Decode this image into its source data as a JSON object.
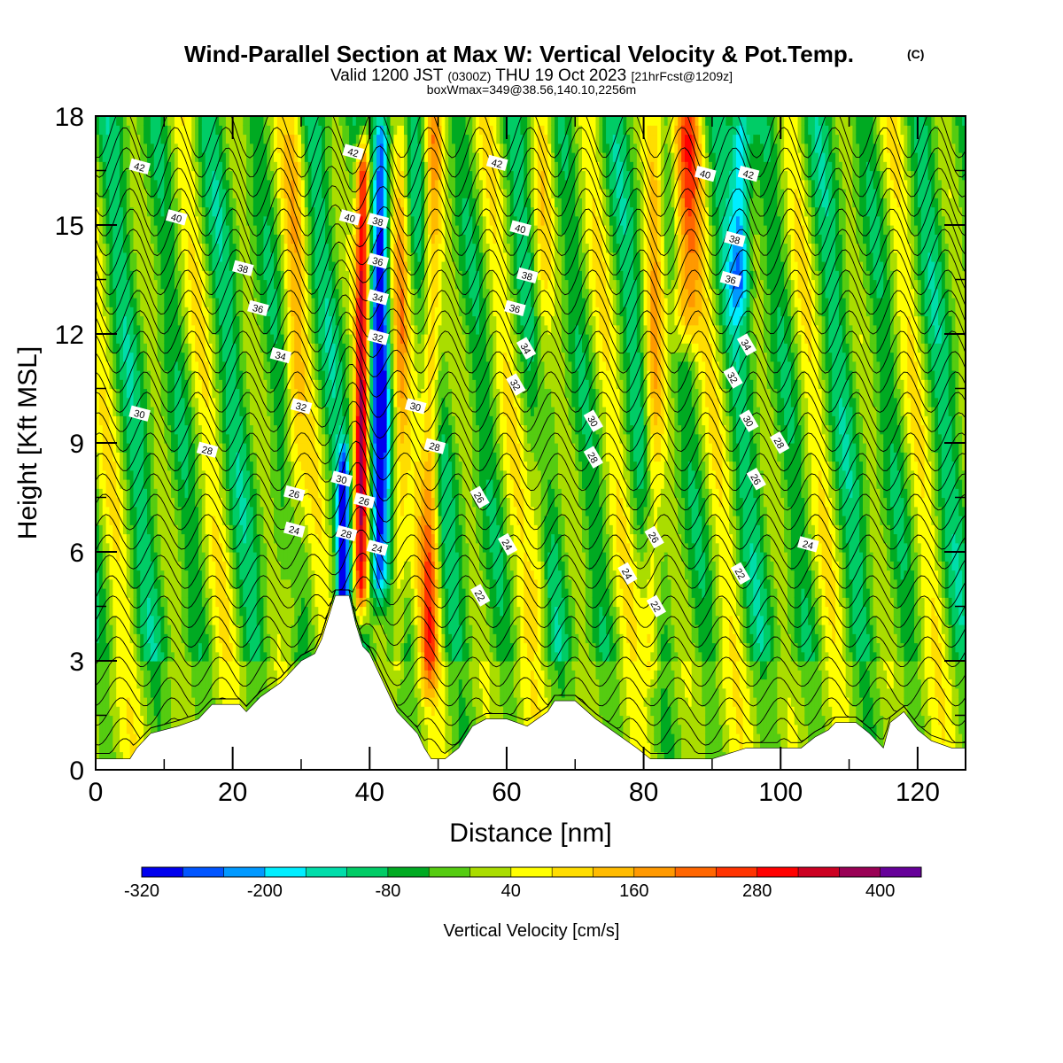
{
  "chart_data": {
    "type": "heatmap",
    "title": "Wind-Parallel Section at Max W: Vertical Velocity & Pot.Temp.",
    "title_mark": "(C)",
    "subtitle_parts": [
      "Valid 1200 JST ",
      "(0300Z)",
      " THU 19 Oct 2023 ",
      "[21hrFcst@1209z]"
    ],
    "subtitle2": "boxWmax=349@38.56,140.10,2256m",
    "xlabel": "Distance [nm]",
    "ylabel": "Height [Kft MSL]",
    "xlim": [
      0,
      127
    ],
    "ylim": [
      0,
      18
    ],
    "xticks": [
      0,
      20,
      40,
      60,
      80,
      100,
      120
    ],
    "yticks": [
      0,
      3,
      6,
      9,
      12,
      15,
      18
    ],
    "colorbar": {
      "label": "Vertical Velocity [cm/s]",
      "min": -320,
      "max": 440,
      "step": 40,
      "tick_labels": [
        -320,
        -200,
        -80,
        40,
        160,
        280,
        400
      ],
      "colors": [
        "#0000ee",
        "#0055ff",
        "#0099ff",
        "#00eeff",
        "#00ddaa",
        "#00cc66",
        "#00aa22",
        "#55cc11",
        "#aadd00",
        "#ffff00",
        "#ffdd00",
        "#ffbb00",
        "#ff9900",
        "#ff6600",
        "#ff3300",
        "#ff0000",
        "#cc0022",
        "#990055",
        "#660099"
      ]
    },
    "terrain_kft": [
      [
        0,
        0.3
      ],
      [
        5,
        0.3
      ],
      [
        6,
        0.6
      ],
      [
        8,
        1.0
      ],
      [
        12,
        1.2
      ],
      [
        15,
        1.4
      ],
      [
        17,
        1.8
      ],
      [
        21,
        1.8
      ],
      [
        22,
        1.6
      ],
      [
        24,
        2.0
      ],
      [
        27,
        2.4
      ],
      [
        30,
        3.0
      ],
      [
        32,
        3.2
      ],
      [
        33,
        3.6
      ],
      [
        34,
        4.2
      ],
      [
        35,
        4.8
      ],
      [
        37,
        4.8
      ],
      [
        38,
        4.0
      ],
      [
        39,
        3.4
      ],
      [
        40,
        3.2
      ],
      [
        42,
        2.4
      ],
      [
        44,
        1.6
      ],
      [
        47,
        1.0
      ],
      [
        48,
        0.6
      ],
      [
        49,
        0.3
      ],
      [
        51,
        0.3
      ],
      [
        53,
        0.6
      ],
      [
        55,
        1.2
      ],
      [
        57,
        1.4
      ],
      [
        60,
        1.4
      ],
      [
        63,
        1.2
      ],
      [
        66,
        1.6
      ],
      [
        67,
        1.9
      ],
      [
        70,
        1.9
      ],
      [
        73,
        1.4
      ],
      [
        76,
        1.0
      ],
      [
        79,
        0.6
      ],
      [
        81,
        0.3
      ],
      [
        90,
        0.3
      ],
      [
        95,
        0.6
      ],
      [
        103,
        0.6
      ],
      [
        105,
        0.9
      ],
      [
        107,
        1.1
      ],
      [
        108,
        1.3
      ],
      [
        111,
        1.3
      ],
      [
        113,
        1.0
      ],
      [
        115,
        0.6
      ],
      [
        116,
        1.3
      ],
      [
        118,
        1.6
      ],
      [
        120,
        1.1
      ],
      [
        122,
        0.8
      ],
      [
        125,
        0.6
      ],
      [
        127,
        0.6
      ]
    ],
    "velocity_features": [
      {
        "x": 38.8,
        "w": 360,
        "sigma": 1.0,
        "ztop": 17.0,
        "zbot": 4.5
      },
      {
        "x": 36.2,
        "w": -280,
        "sigma": 0.8,
        "ztop": 8.5,
        "zbot": 4.5
      },
      {
        "x": 41.5,
        "w": -300,
        "sigma": 1.2,
        "ztop": 18.0,
        "zbot": 5.0
      },
      {
        "x": 86.0,
        "w": 200,
        "sigma": 2.0,
        "ztop": 18.0,
        "zbot": 12.0
      },
      {
        "x": 94.0,
        "w": -200,
        "sigma": 1.5,
        "ztop": 18.0,
        "zbot": 13.0
      },
      {
        "x": 49.0,
        "w": 190,
        "sigma": 1.3,
        "ztop": 18.0,
        "zbot": 2.5
      },
      {
        "x": 81.5,
        "w": 150,
        "sigma": 1.4,
        "ztop": 18.0,
        "zbot": 3.0
      },
      {
        "x": 65.0,
        "w": 90,
        "sigma": 1.5,
        "ztop": 18.0,
        "zbot": 4.0
      },
      {
        "x": 44.5,
        "w": 110,
        "sigma": 1.0,
        "ztop": 18.0,
        "zbot": 3.0
      },
      {
        "x": 29.0,
        "w": 80,
        "sigma": 1.5,
        "ztop": 18.0,
        "zbot": 4.0
      }
    ],
    "theta_labels": [
      {
        "x": 6.4,
        "z": 16.6,
        "t": "42"
      },
      {
        "x": 11.8,
        "z": 15.2,
        "t": "40"
      },
      {
        "x": 21.5,
        "z": 13.8,
        "t": "38"
      },
      {
        "x": 23.7,
        "z": 12.7,
        "t": "36"
      },
      {
        "x": 27.0,
        "z": 11.4,
        "t": "34"
      },
      {
        "x": 30.0,
        "z": 10.0,
        "t": "32"
      },
      {
        "x": 6.4,
        "z": 9.8,
        "t": "30"
      },
      {
        "x": 16.3,
        "z": 8.8,
        "t": "28"
      },
      {
        "x": 29.0,
        "z": 7.6,
        "t": "26"
      },
      {
        "x": 29.0,
        "z": 6.6,
        "t": "24"
      },
      {
        "x": 37.6,
        "z": 17.0,
        "t": "42"
      },
      {
        "x": 37.1,
        "z": 15.2,
        "t": "40"
      },
      {
        "x": 41.2,
        "z": 15.1,
        "t": "38"
      },
      {
        "x": 41.2,
        "z": 14.0,
        "t": "36"
      },
      {
        "x": 41.2,
        "z": 13.0,
        "t": "34"
      },
      {
        "x": 41.2,
        "z": 11.9,
        "t": "32"
      },
      {
        "x": 35.9,
        "z": 8.0,
        "t": "30"
      },
      {
        "x": 36.6,
        "z": 6.5,
        "t": "28"
      },
      {
        "x": 39.2,
        "z": 7.4,
        "t": "26"
      },
      {
        "x": 41.1,
        "z": 6.1,
        "t": "24"
      },
      {
        "x": 58.6,
        "z": 16.7,
        "t": "42"
      },
      {
        "x": 62.0,
        "z": 14.9,
        "t": "40"
      },
      {
        "x": 63.0,
        "z": 13.6,
        "t": "38"
      },
      {
        "x": 61.2,
        "z": 12.7,
        "t": "36"
      },
      {
        "x": 62.8,
        "z": 11.6,
        "t": "34"
      },
      {
        "x": 61.3,
        "z": 10.6,
        "t": "32"
      },
      {
        "x": 46.7,
        "z": 10.0,
        "t": "30"
      },
      {
        "x": 49.5,
        "z": 8.9,
        "t": "28"
      },
      {
        "x": 56.0,
        "z": 7.5,
        "t": "26"
      },
      {
        "x": 60.1,
        "z": 6.2,
        "t": "24"
      },
      {
        "x": 56.1,
        "z": 4.8,
        "t": "22"
      },
      {
        "x": 89.0,
        "z": 16.4,
        "t": "40"
      },
      {
        "x": 95.3,
        "z": 16.4,
        "t": "42"
      },
      {
        "x": 93.3,
        "z": 14.6,
        "t": "38"
      },
      {
        "x": 92.7,
        "z": 13.5,
        "t": "36"
      },
      {
        "x": 95.0,
        "z": 11.7,
        "t": "34"
      },
      {
        "x": 93.0,
        "z": 10.8,
        "t": "32"
      },
      {
        "x": 72.6,
        "z": 9.6,
        "t": "30"
      },
      {
        "x": 72.6,
        "z": 8.6,
        "t": "28"
      },
      {
        "x": 95.3,
        "z": 9.6,
        "t": "30"
      },
      {
        "x": 99.8,
        "z": 9.0,
        "t": "28"
      },
      {
        "x": 96.4,
        "z": 8.0,
        "t": "26"
      },
      {
        "x": 81.5,
        "z": 6.4,
        "t": "26"
      },
      {
        "x": 77.6,
        "z": 5.4,
        "t": "24"
      },
      {
        "x": 81.8,
        "z": 4.5,
        "t": "22"
      },
      {
        "x": 94.1,
        "z": 5.4,
        "t": "22"
      },
      {
        "x": 104.0,
        "z": 6.2,
        "t": "24"
      }
    ]
  }
}
